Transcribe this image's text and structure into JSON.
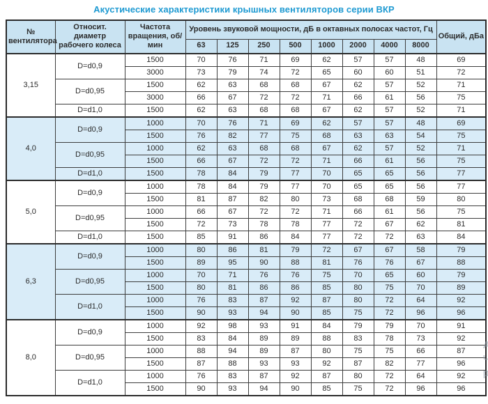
{
  "title": "Акустические характеристики крышных вентиляторов серии ВКР",
  "colors": {
    "title_blue": "#1e9ad2",
    "header_bg": "#c9e3f2",
    "stripe_bg": "#d9ecf8",
    "border": "#3c3c3c"
  },
  "watermark": {
    "lines": [
      "Ак",
      "Чт",
      "ра"
    ]
  },
  "table": {
    "headers": {
      "fan_number": "№ вентилятора",
      "diameter": "Относит. диаметр рабочего колеса",
      "speed": "Частота вращения, об/мин",
      "spl_group": "Уровень звуковой мощности, дБ в октавных полосах частот, Гц",
      "frequencies": [
        "63",
        "125",
        "250",
        "500",
        "1000",
        "2000",
        "4000",
        "8000"
      ],
      "total": "Общий, дБа"
    },
    "groups": [
      {
        "fan": "3,15",
        "shaded": false,
        "blocks": [
          {
            "diameter": "D=d0,9",
            "rows": [
              {
                "rpm": "1500",
                "levels": [
                  70,
                  76,
                  71,
                  69,
                  62,
                  57,
                  57,
                  48
                ],
                "total": 69
              },
              {
                "rpm": "3000",
                "levels": [
                  73,
                  79,
                  74,
                  72,
                  65,
                  60,
                  60,
                  51
                ],
                "total": 72
              }
            ]
          },
          {
            "diameter": "D=d0,95",
            "rows": [
              {
                "rpm": "1500",
                "levels": [
                  62,
                  63,
                  68,
                  68,
                  67,
                  62,
                  57,
                  52
                ],
                "total": 71
              },
              {
                "rpm": "3000",
                "levels": [
                  66,
                  67,
                  72,
                  72,
                  71,
                  66,
                  61,
                  56
                ],
                "total": 75
              }
            ]
          },
          {
            "diameter": "D=d1,0",
            "rows": [
              {
                "rpm": "1500",
                "levels": [
                  62,
                  63,
                  68,
                  68,
                  67,
                  62,
                  57,
                  52
                ],
                "total": 71
              }
            ]
          }
        ]
      },
      {
        "fan": "4,0",
        "shaded": true,
        "blocks": [
          {
            "diameter": "D=d0,9",
            "rows": [
              {
                "rpm": "1000",
                "levels": [
                  70,
                  76,
                  71,
                  69,
                  62,
                  57,
                  57,
                  48
                ],
                "total": 69
              },
              {
                "rpm": "1500",
                "levels": [
                  76,
                  82,
                  77,
                  75,
                  68,
                  63,
                  63,
                  54
                ],
                "total": 75
              }
            ]
          },
          {
            "diameter": "D=d0,95",
            "rows": [
              {
                "rpm": "1000",
                "levels": [
                  62,
                  63,
                  68,
                  68,
                  67,
                  62,
                  57,
                  52
                ],
                "total": 71
              },
              {
                "rpm": "1500",
                "levels": [
                  66,
                  67,
                  72,
                  72,
                  71,
                  66,
                  61,
                  56
                ],
                "total": 75
              }
            ]
          },
          {
            "diameter": "D=d1,0",
            "rows": [
              {
                "rpm": "1500",
                "levels": [
                  78,
                  84,
                  79,
                  77,
                  70,
                  65,
                  65,
                  56
                ],
                "total": 77
              }
            ]
          }
        ]
      },
      {
        "fan": "5,0",
        "shaded": false,
        "blocks": [
          {
            "diameter": "D=d0,9",
            "rows": [
              {
                "rpm": "1000",
                "levels": [
                  78,
                  84,
                  79,
                  77,
                  70,
                  65,
                  65,
                  56
                ],
                "total": 77
              },
              {
                "rpm": "1500",
                "levels": [
                  81,
                  87,
                  82,
                  80,
                  73,
                  68,
                  68,
                  59
                ],
                "total": 80
              }
            ]
          },
          {
            "diameter": "D=d0,95",
            "rows": [
              {
                "rpm": "1000",
                "levels": [
                  66,
                  67,
                  72,
                  72,
                  71,
                  66,
                  61,
                  56
                ],
                "total": 75
              },
              {
                "rpm": "1500",
                "levels": [
                  72,
                  73,
                  78,
                  78,
                  77,
                  72,
                  67,
                  62
                ],
                "total": 81
              }
            ]
          },
          {
            "diameter": "D=d1,0",
            "rows": [
              {
                "rpm": "1500",
                "levels": [
                  85,
                  91,
                  86,
                  84,
                  77,
                  72,
                  72,
                  63
                ],
                "total": 84
              }
            ]
          }
        ]
      },
      {
        "fan": "6,3",
        "shaded": true,
        "blocks": [
          {
            "diameter": "D=d0,9",
            "rows": [
              {
                "rpm": "1000",
                "levels": [
                  80,
                  86,
                  81,
                  79,
                  72,
                  67,
                  67,
                  58
                ],
                "total": 79
              },
              {
                "rpm": "1500",
                "levels": [
                  89,
                  95,
                  90,
                  88,
                  81,
                  76,
                  76,
                  67
                ],
                "total": 88
              }
            ]
          },
          {
            "diameter": "D=d0,95",
            "rows": [
              {
                "rpm": "1000",
                "levels": [
                  70,
                  71,
                  76,
                  76,
                  75,
                  70,
                  65,
                  60
                ],
                "total": 79
              },
              {
                "rpm": "1500",
                "levels": [
                  80,
                  81,
                  86,
                  86,
                  85,
                  80,
                  75,
                  70
                ],
                "total": 89
              }
            ]
          },
          {
            "diameter": "D=d1,0",
            "rows": [
              {
                "rpm": "1000",
                "levels": [
                  76,
                  83,
                  87,
                  92,
                  87,
                  80,
                  72,
                  64
                ],
                "total": 92
              },
              {
                "rpm": "1500",
                "levels": [
                  90,
                  93,
                  94,
                  90,
                  85,
                  75,
                  72,
                  96
                ],
                "total": 96
              }
            ]
          }
        ]
      },
      {
        "fan": "8,0",
        "shaded": false,
        "blocks": [
          {
            "diameter": "D=d0,9",
            "rows": [
              {
                "rpm": "1000",
                "levels": [
                  92,
                  98,
                  93,
                  91,
                  84,
                  79,
                  79,
                  70
                ],
                "total": 91
              },
              {
                "rpm": "1500",
                "levels": [
                  83,
                  84,
                  89,
                  89,
                  88,
                  83,
                  78,
                  73
                ],
                "total": 92
              }
            ]
          },
          {
            "diameter": "D=d0,95",
            "rows": [
              {
                "rpm": "1000",
                "levels": [
                  88,
                  94,
                  89,
                  87,
                  80,
                  75,
                  75,
                  66
                ],
                "total": 87
              },
              {
                "rpm": "1500",
                "levels": [
                  87,
                  88,
                  93,
                  93,
                  92,
                  87,
                  82,
                  77
                ],
                "total": 96
              }
            ]
          },
          {
            "diameter": "D=d1,0",
            "rows": [
              {
                "rpm": "1000",
                "levels": [
                  76,
                  83,
                  87,
                  92,
                  87,
                  80,
                  72,
                  64
                ],
                "total": 92
              },
              {
                "rpm": "1500",
                "levels": [
                  90,
                  93,
                  94,
                  90,
                  85,
                  75,
                  72,
                  96
                ],
                "total": 96
              }
            ]
          }
        ]
      }
    ]
  }
}
